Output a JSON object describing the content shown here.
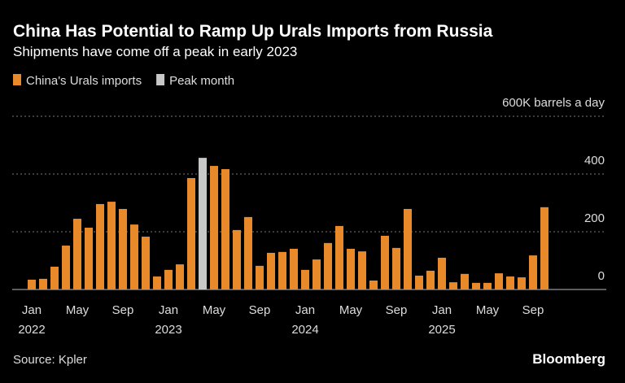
{
  "chart_data": {
    "type": "bar",
    "title": "China Has Potential to Ramp Up Urals Imports from Russia",
    "subtitle": "Shipments have come off a peak in early 2023",
    "source": "Source: Kpler",
    "brand": "Bloomberg",
    "categories": [
      "Jan\n2022",
      null,
      null,
      null,
      "May",
      null,
      null,
      null,
      "Sep",
      null,
      null,
      null,
      "Jan\n2023",
      null,
      null,
      null,
      "May",
      null,
      null,
      null,
      "Sep",
      null,
      null,
      null,
      "Jan\n2024",
      null,
      null,
      null,
      "May",
      null,
      null,
      null,
      "Sep",
      null,
      null,
      null,
      "Jan\n2025",
      null,
      null,
      null,
      "May",
      null,
      null,
      null,
      "Sep",
      null
    ],
    "series": [
      {
        "name": "China's Urals imports",
        "color": "#e88a2a",
        "values": [
          34,
          37,
          79,
          152,
          245,
          214,
          296,
          304,
          279,
          225,
          183,
          45,
          68,
          87,
          386,
          null,
          428,
          417,
          206,
          251,
          82,
          127,
          130,
          141,
          68,
          104,
          161,
          220,
          141,
          132,
          31,
          186,
          144,
          279,
          48,
          65,
          110,
          25,
          54,
          23,
          23,
          56,
          45,
          42,
          118,
          285
        ]
      },
      {
        "name": "Peak month",
        "color": "#c8c8c8",
        "values": [
          null,
          null,
          null,
          null,
          null,
          null,
          null,
          null,
          null,
          null,
          null,
          null,
          null,
          null,
          null,
          456,
          null,
          null,
          null,
          null,
          null,
          null,
          null,
          null,
          null,
          null,
          null,
          null,
          null,
          null,
          null,
          null,
          null,
          null,
          null,
          null,
          null,
          null,
          null,
          null,
          null,
          null,
          null,
          null,
          null,
          null
        ]
      }
    ],
    "ylim": [
      0,
      600
    ],
    "yticks": [
      0,
      200,
      400,
      {
        "value": 600,
        "label": "600K barrels a day"
      }
    ],
    "grid": true,
    "legend": "top-left"
  }
}
